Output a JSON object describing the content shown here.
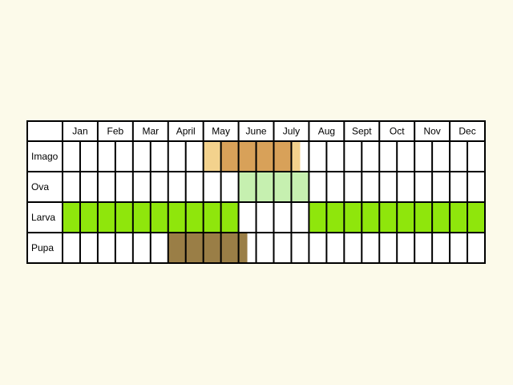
{
  "chart_data": {
    "type": "table",
    "months": [
      "Jan",
      "Feb",
      "Mar",
      "April",
      "May",
      "June",
      "July",
      "Aug",
      "Sept",
      "Oct",
      "Nov",
      "Dec"
    ],
    "subdivisions_per_month": 2,
    "stages": [
      {
        "label": "Imago",
        "segments": [
          {
            "start_month": 4.0,
            "end_month": 4.5,
            "color": "#f3d28d"
          },
          {
            "start_month": 4.5,
            "end_month": 6.5,
            "color": "#d8a159"
          },
          {
            "start_month": 6.5,
            "end_month": 6.75,
            "color": "#f3d28d"
          }
        ]
      },
      {
        "label": "Ova",
        "segments": [
          {
            "start_month": 5.0,
            "end_month": 7.0,
            "color": "#c6f0b0"
          }
        ]
      },
      {
        "label": "Larva",
        "segments": [
          {
            "start_month": 0.0,
            "end_month": 5.0,
            "color": "#8fe60c"
          },
          {
            "start_month": 7.0,
            "end_month": 12.0,
            "color": "#8fe60c"
          }
        ]
      },
      {
        "label": "Pupa",
        "segments": [
          {
            "start_month": 3.0,
            "end_month": 5.25,
            "color": "#9a7e46"
          }
        ]
      }
    ]
  }
}
